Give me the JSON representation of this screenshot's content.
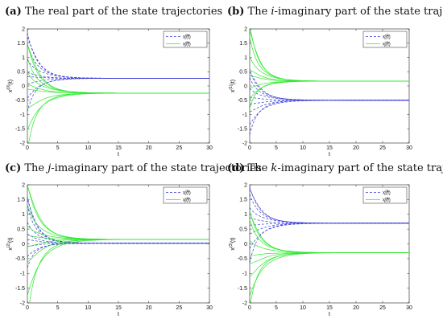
{
  "figure": {
    "panels": [
      {
        "tag": "(a)",
        "caption_pre": " The real part of the state trajectories",
        "caption_em": "",
        "caption_post": ""
      },
      {
        "tag": "(b)",
        "caption_pre": " The ",
        "caption_em": "i",
        "caption_post": "-imaginary part of the state trajectories"
      },
      {
        "tag": "(c)",
        "caption_pre": " The ",
        "caption_em": "j",
        "caption_post": "-imaginary part of the state trajectories"
      },
      {
        "tag": "(d)",
        "caption_pre": " The ",
        "caption_em": "k",
        "caption_post": "-imaginary part of the state trajectories"
      }
    ]
  },
  "colors": {
    "series1": "#3a3ad6",
    "series2": "#2ee82e",
    "axis": "#222222"
  },
  "chart_data": [
    {
      "type": "line",
      "xlabel": "t",
      "ylabel": "x",
      "ylabel_sup": "(0)",
      "ylabel_suffix": "(t)",
      "xlim": [
        0,
        30
      ],
      "ylim": [
        -2,
        2
      ],
      "xticks": [
        "0",
        "5",
        "10",
        "15",
        "20",
        "25",
        "30"
      ],
      "yticks": [
        "-2",
        "-1.5",
        "-1",
        "-0.5",
        "0",
        "0.5",
        "1",
        "1.5",
        "2"
      ],
      "legend": [
        {
          "style": "dashed",
          "main": "x",
          "sup": "(0)",
          "sub": "1",
          "suffix": "(t)"
        },
        {
          "style": "solid",
          "main": "x",
          "sup": "(0)",
          "sub": "2",
          "suffix": "(t)"
        }
      ],
      "series": [
        {
          "name": "x1(0)(t)",
          "style": "dashed",
          "final": 0.27,
          "initials": [
            1.72,
            1.5,
            1.2,
            0.9,
            0.55,
            0.35,
            0.05,
            -0.3,
            -0.6
          ],
          "tau": 2.2
        },
        {
          "name": "x2(0)(t)",
          "style": "solid",
          "final": -0.25,
          "initials": [
            1.45,
            1.1,
            0.7,
            0.45,
            0.2,
            -0.05,
            -0.85,
            -1.3,
            -1.75
          ],
          "tau": 2.4
        }
      ]
    },
    {
      "type": "line",
      "xlabel": "t",
      "ylabel": "x",
      "ylabel_sup": "(1)",
      "ylabel_suffix": "(t)",
      "xlim": [
        0,
        30
      ],
      "ylim": [
        -2,
        2
      ],
      "xticks": [
        "0",
        "5",
        "10",
        "15",
        "20",
        "25",
        "30"
      ],
      "yticks": [
        "-2",
        "-1.5",
        "-1",
        "-0.5",
        "0",
        "0.5",
        "1",
        "1.5",
        "2"
      ],
      "legend": [
        {
          "style": "dashed",
          "main": "x",
          "sup": "(1)",
          "sub": "1",
          "suffix": "(t)"
        },
        {
          "style": "solid",
          "main": "x",
          "sup": "(1)",
          "sub": "2",
          "suffix": "(t)"
        }
      ],
      "series": [
        {
          "name": "x1(1)(t)",
          "style": "dashed",
          "final": -0.5,
          "initials": [
            0.5,
            0.3,
            0.1,
            -0.1,
            -0.35,
            -0.7,
            -0.95,
            -1.2,
            -1.4
          ],
          "tau": 2.6
        },
        {
          "name": "x2(1)(t)",
          "style": "solid",
          "final": 0.17,
          "initials": [
            1.95,
            1.7,
            1.35,
            1.0,
            0.75,
            0.45,
            -0.1,
            -0.35,
            -0.55
          ],
          "tau": 2.3
        }
      ]
    },
    {
      "type": "line",
      "xlabel": "t",
      "ylabel": "x",
      "ylabel_sup": "(2)",
      "ylabel_suffix": "(t)",
      "xlim": [
        0,
        30
      ],
      "ylim": [
        -2,
        2
      ],
      "xticks": [
        "0",
        "5",
        "10",
        "15",
        "20",
        "25",
        "30"
      ],
      "yticks": [
        "-2",
        "-1.5",
        "-1",
        "-0.5",
        "0",
        "0.5",
        "1",
        "1.5",
        "2"
      ],
      "legend": [
        {
          "style": "dashed",
          "main": "x",
          "sup": "(2)",
          "sub": "1",
          "suffix": "(t)"
        },
        {
          "style": "solid",
          "main": "x",
          "sup": "(2)",
          "sub": "2",
          "suffix": "(t)"
        }
      ],
      "series": [
        {
          "name": "x1(2)(t)",
          "style": "dashed",
          "final": 0.02,
          "initials": [
            1.5,
            1.25,
            1.0,
            0.7,
            0.45,
            0.2,
            -0.1,
            -0.35,
            -0.6
          ],
          "tau": 2.0
        },
        {
          "name": "x2(2)(t)",
          "style": "solid",
          "final": 0.15,
          "initials": [
            1.95,
            1.6,
            1.05,
            0.6,
            0.35,
            -0.2,
            -0.7,
            -1.4,
            -1.85
          ],
          "tau": 2.5
        }
      ]
    },
    {
      "type": "line",
      "xlabel": "t",
      "ylabel": "x",
      "ylabel_sup": "(3)",
      "ylabel_suffix": "(t)",
      "xlim": [
        0,
        30
      ],
      "ylim": [
        -2,
        2
      ],
      "xticks": [
        "0",
        "5",
        "10",
        "15",
        "20",
        "25",
        "30"
      ],
      "yticks": [
        "-2",
        "-1.5",
        "-1",
        "-0.5",
        "0",
        "0.5",
        "1",
        "1.5",
        "2"
      ],
      "legend": [
        {
          "style": "dashed",
          "main": "x",
          "sup": "(3)",
          "sub": "1",
          "suffix": "(t)"
        },
        {
          "style": "solid",
          "main": "x",
          "sup": "(3)",
          "sub": "2",
          "suffix": "(t)"
        }
      ],
      "series": [
        {
          "name": "x1(3)(t)",
          "style": "dashed",
          "final": 0.7,
          "initials": [
            1.85,
            1.65,
            1.45,
            1.2,
            0.95,
            0.6,
            0.3,
            0.0,
            -0.3
          ],
          "tau": 2.6
        },
        {
          "name": "x2(3)(t)",
          "style": "solid",
          "final": -0.3,
          "initials": [
            1.05,
            0.8,
            0.55,
            0.1,
            -0.45,
            -0.85,
            -1.2,
            -1.5,
            -1.7
          ],
          "tau": 2.6
        }
      ]
    }
  ]
}
